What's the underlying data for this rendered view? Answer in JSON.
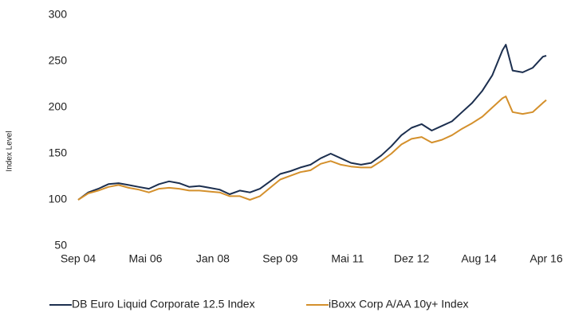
{
  "chart_data": {
    "type": "line",
    "y_label": "Index Level",
    "x": [
      "2004-09",
      "2004-12",
      "2005-03",
      "2005-06",
      "2005-09",
      "2005-12",
      "2006-03",
      "2006-06",
      "2006-09",
      "2006-12",
      "2007-03",
      "2007-06",
      "2007-09",
      "2007-12",
      "2008-03",
      "2008-06",
      "2008-09",
      "2008-12",
      "2009-03",
      "2009-06",
      "2009-09",
      "2009-12",
      "2010-03",
      "2010-06",
      "2010-09",
      "2010-12",
      "2011-03",
      "2011-06",
      "2011-09",
      "2011-12",
      "2012-03",
      "2012-06",
      "2012-09",
      "2012-12",
      "2013-03",
      "2013-06",
      "2013-09",
      "2013-12",
      "2014-03",
      "2014-06",
      "2014-09",
      "2014-12",
      "2015-03",
      "2015-04",
      "2015-06",
      "2015-09",
      "2015-12",
      "2016-03",
      "2016-04"
    ],
    "series": [
      {
        "name": "DB Euro Liquid Corporate 12.5 Index",
        "color": "#1c2f4f",
        "values": [
          100,
          108,
          112,
          117,
          118,
          116,
          114,
          112,
          117,
          120,
          118,
          114,
          115,
          113,
          111,
          106,
          110,
          108,
          112,
          120,
          128,
          131,
          135,
          138,
          145,
          150,
          145,
          140,
          138,
          140,
          148,
          158,
          170,
          178,
          182,
          175,
          180,
          185,
          195,
          205,
          218,
          235,
          262,
          268,
          240,
          238,
          243,
          255,
          256
        ]
      },
      {
        "name": "iBoxx Corp A/AA 10y+ Index",
        "color": "#d4902c",
        "values": [
          100,
          107,
          110,
          114,
          116,
          113,
          111,
          108,
          112,
          113,
          112,
          110,
          110,
          109,
          108,
          104,
          104,
          100,
          104,
          113,
          122,
          126,
          130,
          132,
          139,
          142,
          138,
          136,
          135,
          135,
          142,
          150,
          160,
          166,
          168,
          162,
          165,
          170,
          177,
          183,
          190,
          200,
          210,
          212,
          195,
          193,
          195,
          205,
          208
        ]
      }
    ],
    "xlim": [
      "2004-09",
      "2016-04"
    ],
    "xticks": [
      {
        "value": "2004-09",
        "label": "Sep 04"
      },
      {
        "value": "2006-05",
        "label": "Mai 06"
      },
      {
        "value": "2008-01",
        "label": "Jan 08"
      },
      {
        "value": "2009-09",
        "label": "Sep 09"
      },
      {
        "value": "2011-05",
        "label": "Mai 11"
      },
      {
        "value": "2012-12",
        "label": "Dez 12"
      },
      {
        "value": "2014-08",
        "label": "Aug 14"
      },
      {
        "value": "2016-04",
        "label": "Apr 16"
      }
    ],
    "ylim": [
      50,
      300
    ],
    "yticks": [
      50,
      100,
      150,
      200,
      250,
      300
    ]
  }
}
